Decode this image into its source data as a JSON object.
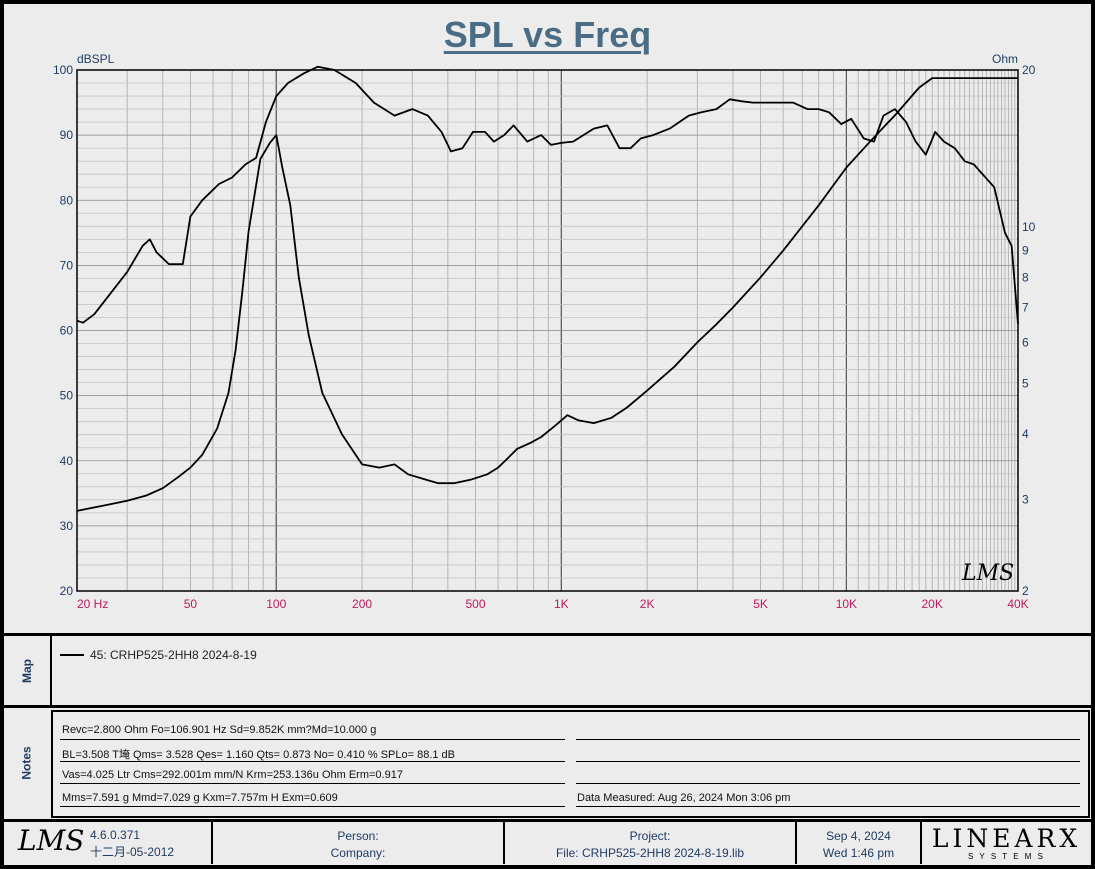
{
  "title": "SPL vs Freq",
  "chart_data": {
    "type": "line",
    "title": "SPL vs Freq",
    "x_scale": "log",
    "xlim": [
      20,
      40000
    ],
    "left_axis": {
      "label": "dBSPL",
      "ylim": [
        20,
        100
      ],
      "ticks": [
        20,
        30,
        40,
        50,
        60,
        70,
        80,
        90,
        100
      ]
    },
    "right_axis": {
      "label": "Ohm",
      "scale": "log",
      "ylim": [
        2,
        20
      ],
      "ticks": [
        2,
        3,
        4,
        5,
        6,
        7,
        8,
        9,
        10,
        20
      ]
    },
    "x_ticks": [
      {
        "value": 20,
        "label": "20  Hz"
      },
      {
        "value": 50,
        "label": "50"
      },
      {
        "value": 100,
        "label": "100"
      },
      {
        "value": 200,
        "label": "200"
      },
      {
        "value": 500,
        "label": "500"
      },
      {
        "value": 1000,
        "label": "1K"
      },
      {
        "value": 2000,
        "label": "2K"
      },
      {
        "value": 5000,
        "label": "5K"
      },
      {
        "value": 10000,
        "label": "10K"
      },
      {
        "value": 20000,
        "label": "20K"
      },
      {
        "value": 40000,
        "label": "40K"
      }
    ],
    "grid": true,
    "series": [
      {
        "axis": "left",
        "points": [
          [
            20,
            61.5
          ],
          [
            21,
            61.2
          ],
          [
            23,
            62.5
          ],
          [
            26,
            65.5
          ],
          [
            30,
            69
          ],
          [
            34,
            73
          ],
          [
            36,
            74
          ],
          [
            38,
            72
          ],
          [
            42,
            70.2
          ],
          [
            47,
            70.2
          ],
          [
            50,
            77.5
          ],
          [
            55,
            80
          ],
          [
            63,
            82.5
          ],
          [
            70,
            83.5
          ],
          [
            78,
            85.5
          ],
          [
            85,
            86.5
          ],
          [
            92,
            92
          ],
          [
            100,
            96
          ],
          [
            110,
            98
          ],
          [
            125,
            99.5
          ],
          [
            140,
            100.5
          ],
          [
            160,
            100
          ],
          [
            190,
            98
          ],
          [
            220,
            95
          ],
          [
            260,
            93
          ],
          [
            300,
            94
          ],
          [
            340,
            93
          ],
          [
            380,
            90.5
          ],
          [
            410,
            87.5
          ],
          [
            450,
            88
          ],
          [
            490,
            90.5
          ],
          [
            540,
            90.5
          ],
          [
            580,
            89
          ],
          [
            630,
            90
          ],
          [
            680,
            91.5
          ],
          [
            760,
            89
          ],
          [
            850,
            90
          ],
          [
            920,
            88.5
          ],
          [
            1000,
            88.8
          ],
          [
            1100,
            89
          ],
          [
            1300,
            91
          ],
          [
            1450,
            91.5
          ],
          [
            1600,
            88
          ],
          [
            1750,
            88
          ],
          [
            1900,
            89.5
          ],
          [
            2100,
            90
          ],
          [
            2400,
            91
          ],
          [
            2800,
            93
          ],
          [
            3100,
            93.5
          ],
          [
            3500,
            94
          ],
          [
            3900,
            95.5
          ],
          [
            4300,
            95.2
          ],
          [
            4700,
            95
          ],
          [
            5500,
            95
          ],
          [
            6500,
            95
          ],
          [
            7300,
            94
          ],
          [
            8000,
            94
          ],
          [
            8700,
            93.5
          ],
          [
            9600,
            91.7
          ],
          [
            10400,
            92.5
          ],
          [
            11500,
            89.5
          ],
          [
            12500,
            89
          ],
          [
            13500,
            93
          ],
          [
            14800,
            94
          ],
          [
            16200,
            92
          ],
          [
            17500,
            89
          ],
          [
            19000,
            87
          ],
          [
            20500,
            90.5
          ],
          [
            22000,
            89
          ],
          [
            24000,
            88
          ],
          [
            26000,
            86
          ],
          [
            28000,
            85.5
          ],
          [
            33000,
            82
          ],
          [
            36000,
            75
          ],
          [
            38000,
            73
          ],
          [
            40000,
            61
          ]
        ]
      },
      {
        "axis": "right",
        "points": [
          [
            20,
            2.85
          ],
          [
            22,
            2.88
          ],
          [
            25,
            2.92
          ],
          [
            30,
            2.98
          ],
          [
            35,
            3.05
          ],
          [
            40,
            3.15
          ],
          [
            45,
            3.3
          ],
          [
            50,
            3.45
          ],
          [
            55,
            3.65
          ],
          [
            62,
            4.1
          ],
          [
            68,
            4.8
          ],
          [
            72,
            5.8
          ],
          [
            76,
            7.5
          ],
          [
            80,
            9.8
          ],
          [
            88,
            13.5
          ],
          [
            95,
            14.5
          ],
          [
            100,
            15
          ],
          [
            105,
            13
          ],
          [
            112,
            11
          ],
          [
            120,
            8
          ],
          [
            130,
            6.2
          ],
          [
            145,
            4.8
          ],
          [
            170,
            4
          ],
          [
            200,
            3.5
          ],
          [
            230,
            3.45
          ],
          [
            260,
            3.5
          ],
          [
            290,
            3.35
          ],
          [
            330,
            3.28
          ],
          [
            370,
            3.22
          ],
          [
            420,
            3.22
          ],
          [
            480,
            3.27
          ],
          [
            550,
            3.35
          ],
          [
            600,
            3.45
          ],
          [
            650,
            3.6
          ],
          [
            700,
            3.75
          ],
          [
            780,
            3.85
          ],
          [
            850,
            3.95
          ],
          [
            950,
            4.15
          ],
          [
            1050,
            4.35
          ],
          [
            1150,
            4.25
          ],
          [
            1300,
            4.2
          ],
          [
            1500,
            4.3
          ],
          [
            1700,
            4.5
          ],
          [
            2000,
            4.85
          ],
          [
            2500,
            5.4
          ],
          [
            3000,
            6.0
          ],
          [
            3500,
            6.5
          ],
          [
            4000,
            7.0
          ],
          [
            5000,
            8.0
          ],
          [
            6000,
            9.0
          ],
          [
            8000,
            11.0
          ],
          [
            10000,
            13.0
          ],
          [
            12000,
            14.5
          ],
          [
            15000,
            16.5
          ],
          [
            18000,
            18.5
          ],
          [
            20000,
            19.3
          ],
          [
            25000,
            19.3
          ],
          [
            30000,
            19.3
          ],
          [
            40000,
            19.3
          ]
        ]
      }
    ]
  },
  "map": {
    "label": "Map",
    "entry": "45: CRHP525-2HH8 2024-8-19"
  },
  "notes": {
    "label": "Notes",
    "lines": [
      "Revc=2.800 Ohm  Fo=106.901 Hz  Sd=9.852K mm?Md=10.000 g",
      "BL=3.508 T埯  Qms= 3.528  Qes= 1.160  Qts= 0.873  No= 0.410 %  SPLo= 88.1 dB",
      "Vas=4.025 Ltr  Cms=292.001m mm/N  Krm=253.136u Ohm  Erm=0.917",
      "Mms=7.591 g  Mmd=7.029 g  Kxm=7.757m H  Exm=0.609"
    ],
    "measured": "Data Measured: Aug 26, 2024  Mon  3:06 pm"
  },
  "footer": {
    "version": "4.6.0.371",
    "build_date": "十二月-05-2012",
    "person": "Person:",
    "company": "Company:",
    "project": "Project:",
    "file": "File: CRHP525-2HH8 2024-8-19.lib",
    "date": "Sep  4, 2024",
    "time": "Wed  1:46 pm",
    "brand_top": "LINEARX",
    "brand_bottom": "S Y S T E M S",
    "logo_text": "LMS"
  }
}
